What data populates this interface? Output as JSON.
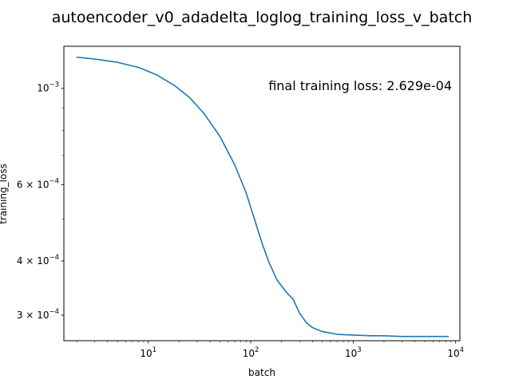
{
  "chart_data": {
    "type": "line",
    "title": "autoencoder_v0_adadelta_loglog_training_loss_v_batch",
    "xlabel": "batch",
    "ylabel": "training_loss",
    "xscale": "log",
    "yscale": "log",
    "xlim": [
      1.5,
      11000
    ],
    "ylim": [
      0.000262,
      0.00125
    ],
    "grid": false,
    "annotation": "final training loss: 2.629e-04",
    "line_color": "#1f77b4",
    "x_ticks": [
      {
        "value": 10,
        "base": "10",
        "exp": "1"
      },
      {
        "value": 100,
        "base": "10",
        "exp": "2"
      },
      {
        "value": 1000,
        "base": "10",
        "exp": "3"
      },
      {
        "value": 10000,
        "base": "10",
        "exp": "4"
      }
    ],
    "y_ticks": [
      {
        "value": 0.001,
        "mantissa": "",
        "base": "10",
        "exp": "−3"
      },
      {
        "value": 0.0006,
        "mantissa": "6 × ",
        "base": "10",
        "exp": "−4"
      },
      {
        "value": 0.0004,
        "mantissa": "4 × ",
        "base": "10",
        "exp": "−4"
      },
      {
        "value": 0.0003,
        "mantissa": "3 × ",
        "base": "10",
        "exp": "−4"
      }
    ],
    "series": [
      {
        "x": [
          2,
          3,
          5,
          8,
          12,
          18,
          25,
          35,
          50,
          70,
          90,
          110,
          130,
          150,
          180,
          220,
          260,
          300,
          350,
          400,
          500,
          700,
          1000,
          1500,
          2000,
          3000,
          5000,
          8500
        ],
        "y": [
          0.00118,
          0.001168,
          0.001148,
          0.001118,
          0.001075,
          0.001015,
          0.000955,
          0.000875,
          0.000775,
          0.000665,
          0.000575,
          0.000495,
          0.000437,
          0.000398,
          0.000362,
          0.00034,
          0.000326,
          0.000303,
          0.000288,
          0.000281,
          0.000275,
          0.000271,
          0.00027,
          0.000269,
          0.000269,
          0.000268,
          0.000268,
          0.000268
        ]
      }
    ]
  }
}
